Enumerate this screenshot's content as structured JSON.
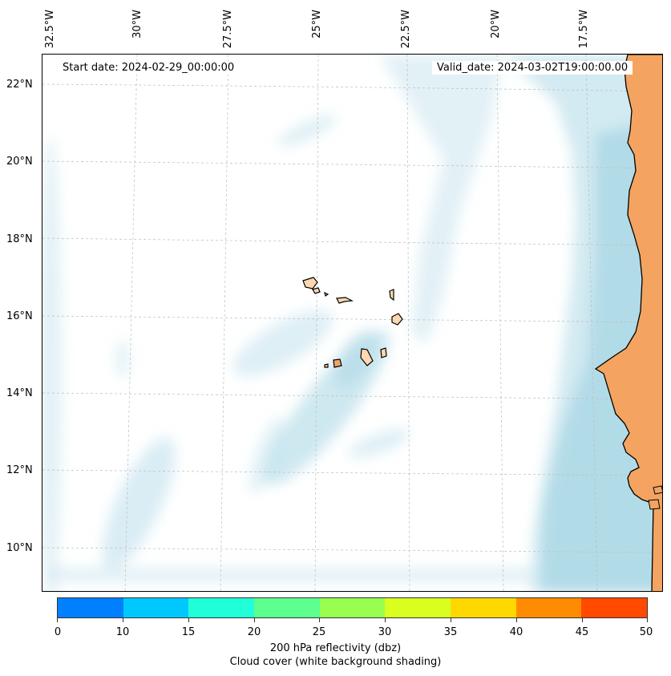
{
  "map": {
    "start_date": "Start date: 2024-02-29_00:00:00",
    "valid_date": "Valid_date: 2024-03-02T19:00:00.00",
    "lon_labels": [
      "32.5°W",
      "30°W",
      "27.5°W",
      "25°W",
      "22.5°W",
      "20°W",
      "17.5°W"
    ],
    "lat_labels": [
      "22°N",
      "20°N",
      "18°N",
      "16°N",
      "14°N",
      "12°N",
      "10°N"
    ],
    "land_color": "#f4a460",
    "cloud_color": "#add8e6"
  },
  "colorbar": {
    "ticks": [
      "0",
      "10",
      "15",
      "20",
      "25",
      "30",
      "35",
      "40",
      "45",
      "50"
    ],
    "colors": [
      "#0080ff",
      "#00c8ff",
      "#20ffd8",
      "#5cff90",
      "#98ff50",
      "#d8ff20",
      "#ffd800",
      "#ff8c00",
      "#ff4a00"
    ],
    "label": "200 hPa reflectivity (dbz)",
    "sublabel": "Cloud cover (white background shading)"
  }
}
